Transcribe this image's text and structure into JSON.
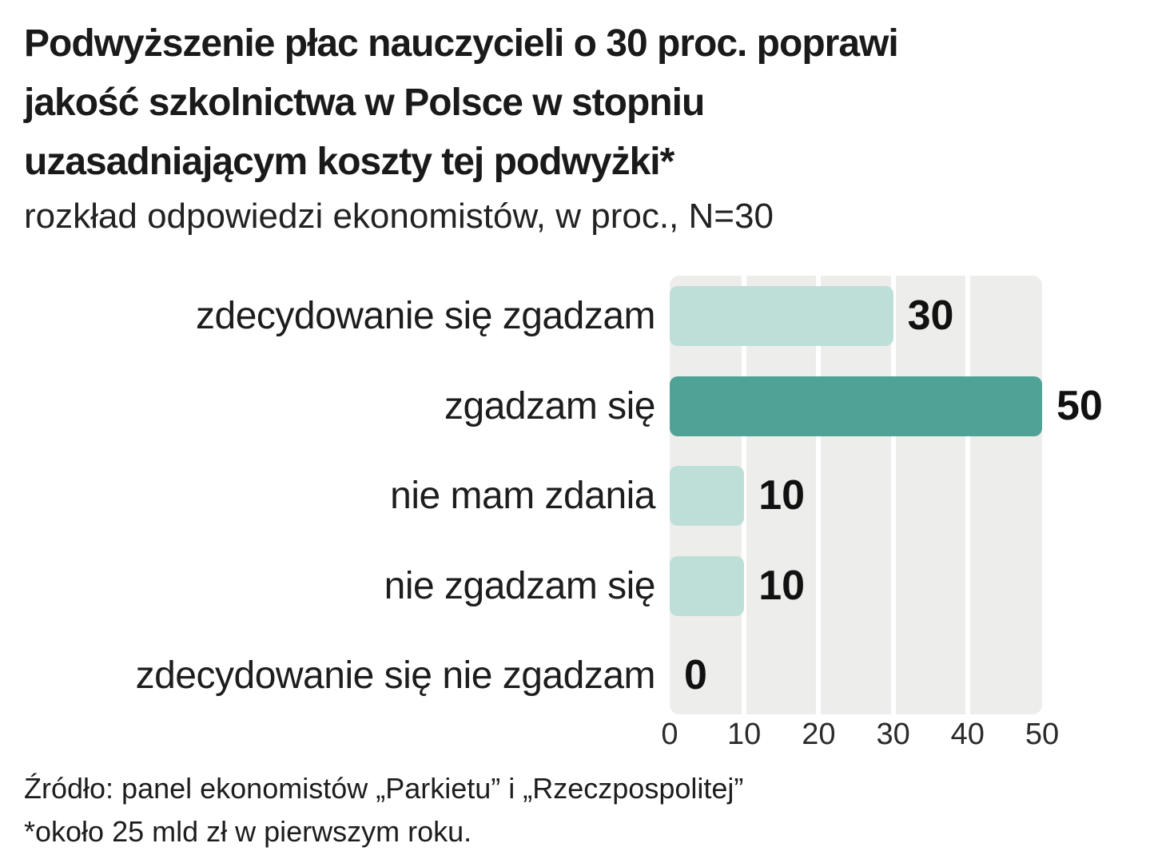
{
  "title": {
    "lines": [
      "Podwyższenie płac nauczycieli o 30 proc. poprawi",
      "jakość szkolnictwa w Polsce w stopniu",
      "uzasadniającym koszty tej podwyżki*"
    ]
  },
  "subtitle": "rozkład odpowiedzi ekonomistów, w proc., N=30",
  "source": "Źródło: panel ekonomistów „Parkietu” i „Rzeczpospolitej”",
  "footnote": "*około 25 mld zł w pierwszym roku.",
  "colors": {
    "bar_light": "#bedfd8",
    "bar_emphasis": "#4fa396",
    "plot_bg": "#ededec",
    "gridline": "#ffffff",
    "text": "#1a1a1a"
  },
  "chart_data": {
    "type": "bar",
    "orientation": "horizontal",
    "title": "Podwyższenie płac nauczycieli o 30 proc. poprawi jakość szkolnictwa w Polsce w stopniu uzasadniającym koszty tej podwyżki*",
    "subtitle": "rozkład odpowiedzi ekonomistów, w proc., N=30",
    "categories": [
      "zdecydowanie się zgadzam",
      "zgadzam się",
      "nie mam zdania",
      "nie zgadzam się",
      "zdecydowanie się nie zgadzam"
    ],
    "values": [
      30,
      50,
      10,
      10,
      0
    ],
    "emphasized_index": 1,
    "emphasized_category": "zgadzam się",
    "x_ticks": [
      0,
      10,
      20,
      30,
      40,
      50
    ],
    "xlim": [
      0,
      50
    ],
    "grid": "vertical",
    "value_labels": true,
    "legend": "none",
    "xlabel": "",
    "ylabel": ""
  }
}
